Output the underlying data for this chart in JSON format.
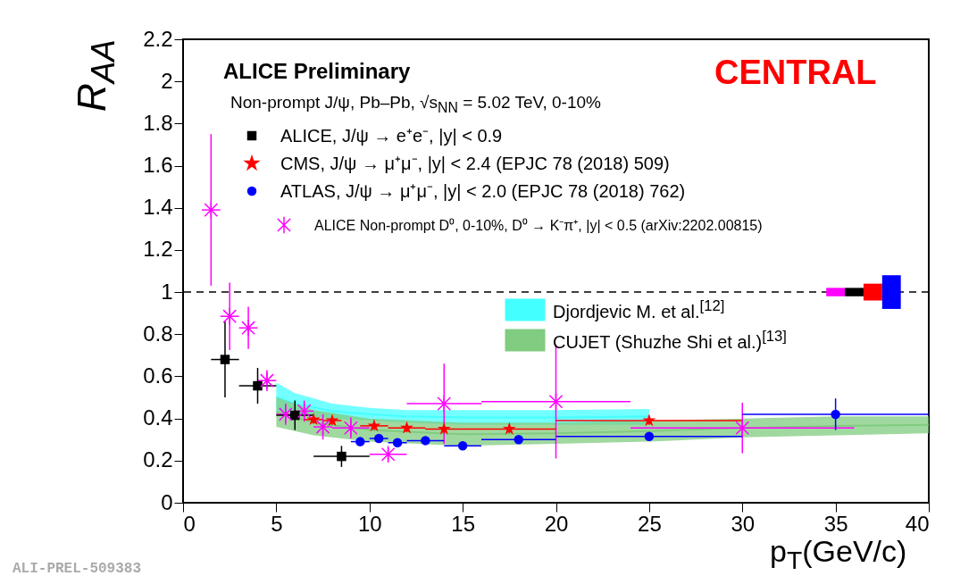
{
  "chart_data": {
    "type": "scatter",
    "title": "ALICE Preliminary",
    "subtitle": "Non-prompt J/ψ, Pb–Pb, √s$_{NN}$ = 5.02 TeV, 0-10%",
    "xlabel": "p$_{T}$(GeV/c)",
    "ylabel": "R$_{AA}$",
    "xlim": [
      0,
      40
    ],
    "ylim": [
      0,
      2.2
    ],
    "xticks": [
      0,
      5,
      10,
      15,
      20,
      25,
      30,
      35,
      40
    ],
    "yticks": [
      0,
      0.2,
      0.4,
      0.6,
      0.8,
      1,
      1.2,
      1.4,
      1.6,
      1.8,
      2,
      2.2
    ],
    "legend": "top left",
    "annotations": [
      "CENTRAL",
      "ALI-PREL-509383"
    ],
    "ref_lines": [
      {
        "axis": "y",
        "value": 1,
        "line_style": "dashed",
        "color": "#000000"
      }
    ],
    "series": [
      {
        "name": "ALICE, J/ψ → e⁺e⁻, |y| < 0.9",
        "marker": "square",
        "color": "#000000",
        "x": [
          2.25,
          4,
          6,
          8.5
        ],
        "values": [
          0.68,
          0.555,
          0.415,
          0.22
        ],
        "errors": [
          0.18,
          0.085,
          0.07,
          0.05
        ],
        "xerrors": [
          0.75,
          1,
          1,
          1.5
        ]
      },
      {
        "name": "CMS, J/ψ → μ⁺μ⁻, |y| < 2.4 (EPJC 78 (2018) 509)",
        "marker": "star",
        "color": "#ff0000",
        "x": [
          7,
          8,
          10.25,
          12,
          14,
          17.5,
          25
        ],
        "values": [
          0.395,
          0.39,
          0.365,
          0.355,
          0.35,
          0.35,
          0.39
        ],
        "errors": [
          0.02,
          0.02,
          0.02,
          0.02,
          0.02,
          0.02,
          0.02
        ],
        "xerrors": [
          0.5,
          0.5,
          0.75,
          1,
          1,
          2.5,
          5
        ]
      },
      {
        "name": "ATLAS, J/ψ → μ⁺μ⁻, |y| < 2.0 (EPJC 78 (2018) 762)",
        "marker": "circle",
        "color": "#0000ff",
        "x": [
          9.5,
          10.5,
          11.5,
          13,
          15,
          18,
          25,
          35
        ],
        "values": [
          0.29,
          0.305,
          0.285,
          0.295,
          0.27,
          0.3,
          0.315,
          0.42
        ],
        "errors": [
          0.02,
          0.02,
          0.02,
          0.015,
          0.02,
          0.015,
          0.02,
          0.075
        ],
        "xerrors": [
          0.5,
          0.5,
          0.5,
          1,
          1,
          2,
          5,
          5
        ]
      },
      {
        "name": "ALICE Non-prompt D⁰, 0-10%, D⁰ → K⁻π⁺, |y| < 0.5 (arXiv:2202.00815)",
        "marker": "cross",
        "color": "#ff00ff",
        "x": [
          1.5,
          2.5,
          3.5,
          4.5,
          5.5,
          6.5,
          7.5,
          9,
          11,
          14,
          20,
          30
        ],
        "values": [
          1.39,
          0.885,
          0.83,
          0.58,
          0.42,
          0.435,
          0.36,
          0.355,
          0.23,
          0.47,
          0.48,
          0.355
        ],
        "errors": [
          0.36,
          0.16,
          0.1,
          0.05,
          0.05,
          0.05,
          0.06,
          0.05,
          0.03,
          0.19,
          0.27,
          0.12
        ],
        "xerrors": [
          0.5,
          0.5,
          0.5,
          0.5,
          0.5,
          0.5,
          0.5,
          1,
          1,
          2,
          4,
          6
        ]
      },
      {
        "name": "Djordjevic M. et al.$^{[12]}$",
        "type": "line",
        "color": "#44ffff",
        "x": [
          5,
          6,
          8,
          10,
          12,
          15,
          20,
          25
        ],
        "values": [
          0.5,
          0.47,
          0.435,
          0.42,
          0.41,
          0.405,
          0.405,
          0.41
        ],
        "lower": [
          0.43,
          0.42,
          0.4,
          0.39,
          0.38,
          0.37,
          0.37,
          0.37
        ],
        "upper": [
          0.57,
          0.52,
          0.47,
          0.45,
          0.44,
          0.44,
          0.44,
          0.445
        ]
      },
      {
        "name": "CUJET (Shuzhe Shi et al.)$^{[13]}$",
        "type": "line",
        "color": "#80cc80",
        "x": [
          5,
          7,
          10,
          15,
          20,
          25,
          30,
          35,
          40
        ],
        "values": [
          0.43,
          0.38,
          0.345,
          0.325,
          0.33,
          0.34,
          0.355,
          0.365,
          0.37
        ],
        "lower": [
          0.36,
          0.32,
          0.29,
          0.27,
          0.28,
          0.29,
          0.31,
          0.32,
          0.33
        ],
        "upper": [
          0.5,
          0.44,
          0.4,
          0.38,
          0.38,
          0.39,
          0.4,
          0.41,
          0.41
        ]
      },
      {
        "type": "bar",
        "x": [
          35,
          36,
          37,
          38
        ],
        "base": [
          0.98,
          0.98,
          0.96,
          0.92
        ],
        "values": [
          0.04,
          0.04,
          0.08,
          0.16
        ],
        "colors": [
          "#ff00ff",
          "#000000",
          "#ff0000",
          "#0000ff"
        ]
      }
    ]
  }
}
